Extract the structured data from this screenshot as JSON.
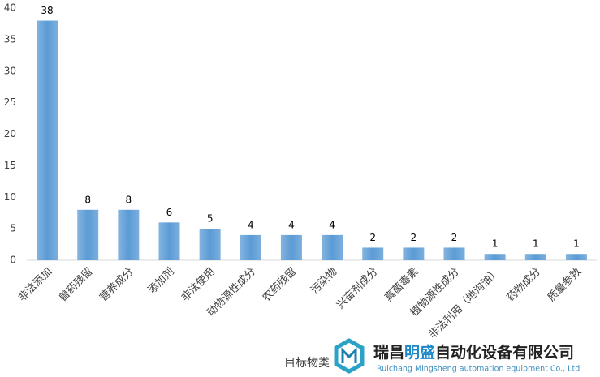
{
  "chart_data": {
    "type": "bar",
    "categories": [
      "非法添加",
      "兽药残留",
      "营养成分",
      "添加剂",
      "非法使用",
      "动物源性成分",
      "农药残留",
      "污染物",
      "兴奋剂成分",
      "真菌毒素",
      "植物源性成分",
      "非法利用（地沟油）",
      "药物成分",
      "质量参数"
    ],
    "values": [
      38,
      8,
      8,
      6,
      5,
      4,
      4,
      4,
      2,
      2,
      2,
      1,
      1,
      1
    ],
    "color": "#5b9bd5",
    "ylim": [
      0,
      40
    ],
    "yticks": [
      0,
      5,
      10,
      15,
      20,
      25,
      30,
      35,
      40
    ],
    "x_label": "目标物类",
    "grid": false
  },
  "watermark": {
    "name_parts": [
      "瑞昌",
      "明盛",
      "自动化设备有限公司"
    ],
    "english": "Ruichang Mingsheng automation equipment Co., Ltd"
  }
}
